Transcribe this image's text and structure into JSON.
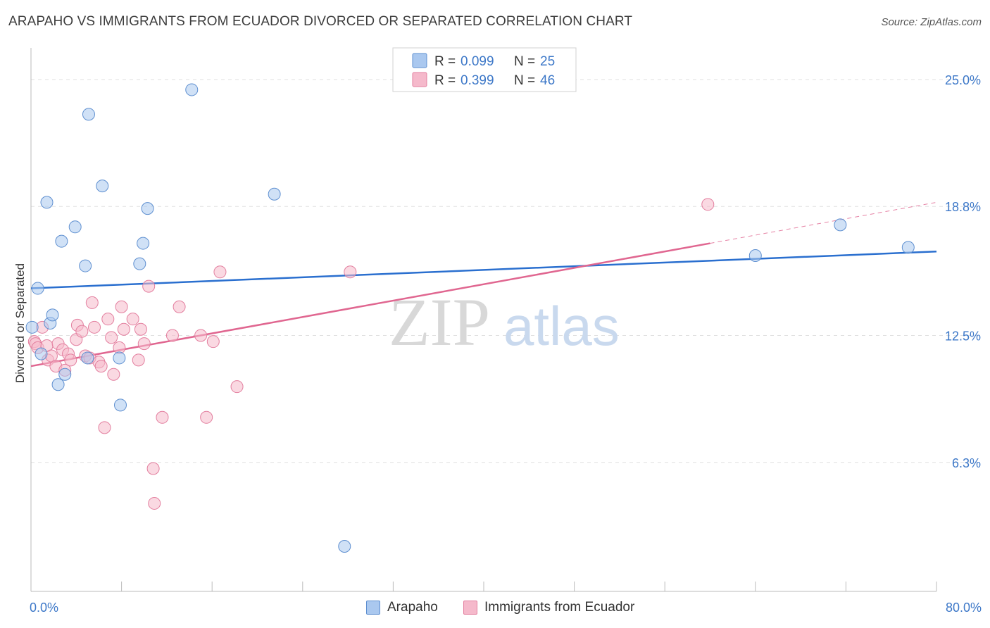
{
  "header": {
    "title": "ARAPAHO VS IMMIGRANTS FROM ECUADOR DIVORCED OR SEPARATED CORRELATION CHART",
    "source": "Source: ZipAtlas.com"
  },
  "watermark": {
    "zip": "ZIP",
    "atlas": "atlas"
  },
  "colors": {
    "blue_fill": "#aac8ef",
    "blue_stroke": "#5e8fd0",
    "blue_line": "#2a6fcf",
    "pink_fill": "#f5b9cb",
    "pink_stroke": "#e37f9f",
    "pink_line": "#e06690",
    "axis_label": "#3d78c8",
    "grid": "#e0e0e0"
  },
  "chart_data": {
    "type": "scatter",
    "xlabel": "",
    "ylabel": "Divorced or Separated",
    "xlim": [
      0,
      80
    ],
    "ylim": [
      0,
      26.2
    ],
    "x_tick_labels": [
      {
        "value": 0,
        "label": "0.0%"
      },
      {
        "value": 80,
        "label": "80.0%"
      }
    ],
    "y_tick_labels": [
      {
        "value": 25.0,
        "label": "25.0%"
      },
      {
        "value": 18.8,
        "label": "18.8%"
      },
      {
        "value": 12.5,
        "label": "12.5%"
      },
      {
        "value": 6.3,
        "label": "6.3%"
      }
    ],
    "grid": "dashed horizontal",
    "legend_top": [
      {
        "series": "Arapaho",
        "r_label": "R = ",
        "r_value": "0.099",
        "n_label": "N = ",
        "n_value": "25"
      },
      {
        "series": "Immigrants from Ecuador",
        "r_label": "R = ",
        "r_value": "0.399",
        "n_label": "N = ",
        "n_value": "46"
      }
    ],
    "series": [
      {
        "name": "Arapaho",
        "color": "blue",
        "trend": {
          "x0": 0,
          "y0": 14.8,
          "x1": 80,
          "y1": 16.6,
          "dash_from": null
        },
        "points": [
          [
            0.1,
            12.9
          ],
          [
            0.6,
            14.8
          ],
          [
            0.9,
            11.6
          ],
          [
            1.4,
            19.0
          ],
          [
            1.7,
            13.1
          ],
          [
            1.9,
            13.5
          ],
          [
            2.4,
            10.1
          ],
          [
            2.7,
            17.1
          ],
          [
            3.0,
            10.6
          ],
          [
            3.9,
            17.8
          ],
          [
            4.8,
            15.9
          ],
          [
            5.1,
            23.3
          ],
          [
            6.3,
            19.8
          ],
          [
            7.8,
            11.4
          ],
          [
            7.9,
            9.1
          ],
          [
            9.6,
            16.0
          ],
          [
            9.9,
            17.0
          ],
          [
            10.3,
            18.7
          ],
          [
            14.2,
            24.5
          ],
          [
            21.5,
            19.4
          ],
          [
            27.7,
            2.2
          ],
          [
            64.0,
            16.4
          ],
          [
            71.5,
            17.9
          ],
          [
            77.5,
            16.8
          ],
          [
            5.0,
            11.4
          ]
        ]
      },
      {
        "name": "Immigrants from Ecuador",
        "color": "pink",
        "trend": {
          "x0": 0,
          "y0": 11.0,
          "x1": 80,
          "y1": 19.0,
          "dash_from": 60
        },
        "points": [
          [
            0.3,
            12.2
          ],
          [
            0.4,
            12.1
          ],
          [
            0.6,
            11.9
          ],
          [
            1.0,
            12.9
          ],
          [
            1.4,
            12.0
          ],
          [
            1.5,
            11.3
          ],
          [
            1.8,
            11.5
          ],
          [
            2.2,
            11.0
          ],
          [
            2.4,
            12.1
          ],
          [
            2.8,
            11.8
          ],
          [
            3.0,
            10.8
          ],
          [
            3.3,
            11.6
          ],
          [
            3.5,
            11.3
          ],
          [
            4.0,
            12.3
          ],
          [
            4.1,
            13.0
          ],
          [
            4.5,
            12.7
          ],
          [
            4.8,
            11.5
          ],
          [
            5.2,
            11.4
          ],
          [
            5.4,
            14.1
          ],
          [
            5.6,
            12.9
          ],
          [
            6.0,
            11.2
          ],
          [
            6.2,
            11.0
          ],
          [
            6.5,
            8.0
          ],
          [
            6.8,
            13.3
          ],
          [
            7.1,
            12.4
          ],
          [
            7.3,
            10.6
          ],
          [
            7.8,
            11.9
          ],
          [
            8.0,
            13.9
          ],
          [
            8.2,
            12.8
          ],
          [
            9.0,
            13.3
          ],
          [
            9.5,
            11.3
          ],
          [
            9.7,
            12.8
          ],
          [
            10.0,
            12.1
          ],
          [
            10.4,
            14.9
          ],
          [
            10.8,
            6.0
          ],
          [
            10.9,
            4.3
          ],
          [
            11.6,
            8.5
          ],
          [
            12.5,
            12.5
          ],
          [
            13.1,
            13.9
          ],
          [
            15.0,
            12.5
          ],
          [
            15.5,
            8.5
          ],
          [
            16.1,
            12.2
          ],
          [
            16.7,
            15.6
          ],
          [
            18.2,
            10.0
          ],
          [
            28.2,
            15.6
          ],
          [
            59.8,
            18.9
          ]
        ]
      }
    ]
  }
}
